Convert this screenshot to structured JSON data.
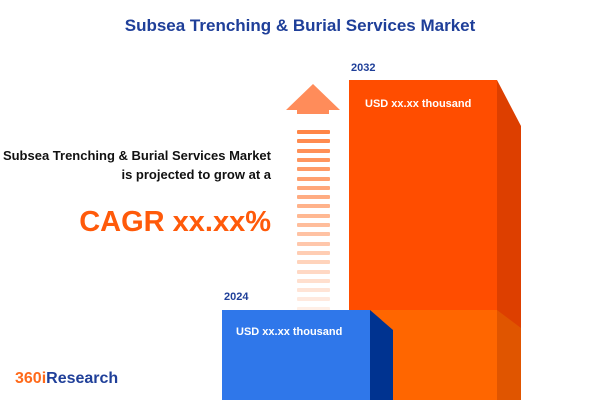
{
  "title": "Subsea Trenching & Burial Services Market",
  "description": "The Subsea Trenching & Burial Services Market is projected to grow at a",
  "cagr": "CAGR xx.xx%",
  "bars": [
    {
      "year": "2024",
      "label": "USD xx.xx thousand",
      "color": "#2f77ea"
    },
    {
      "year": "2032",
      "label": "USD xx.xx thousand",
      "color": "#ff4d00"
    }
  ],
  "logo": {
    "number": "360i",
    "word": "Research"
  },
  "colors": {
    "accent": "#ff5a0a",
    "brand_blue": "#1f3f99"
  }
}
